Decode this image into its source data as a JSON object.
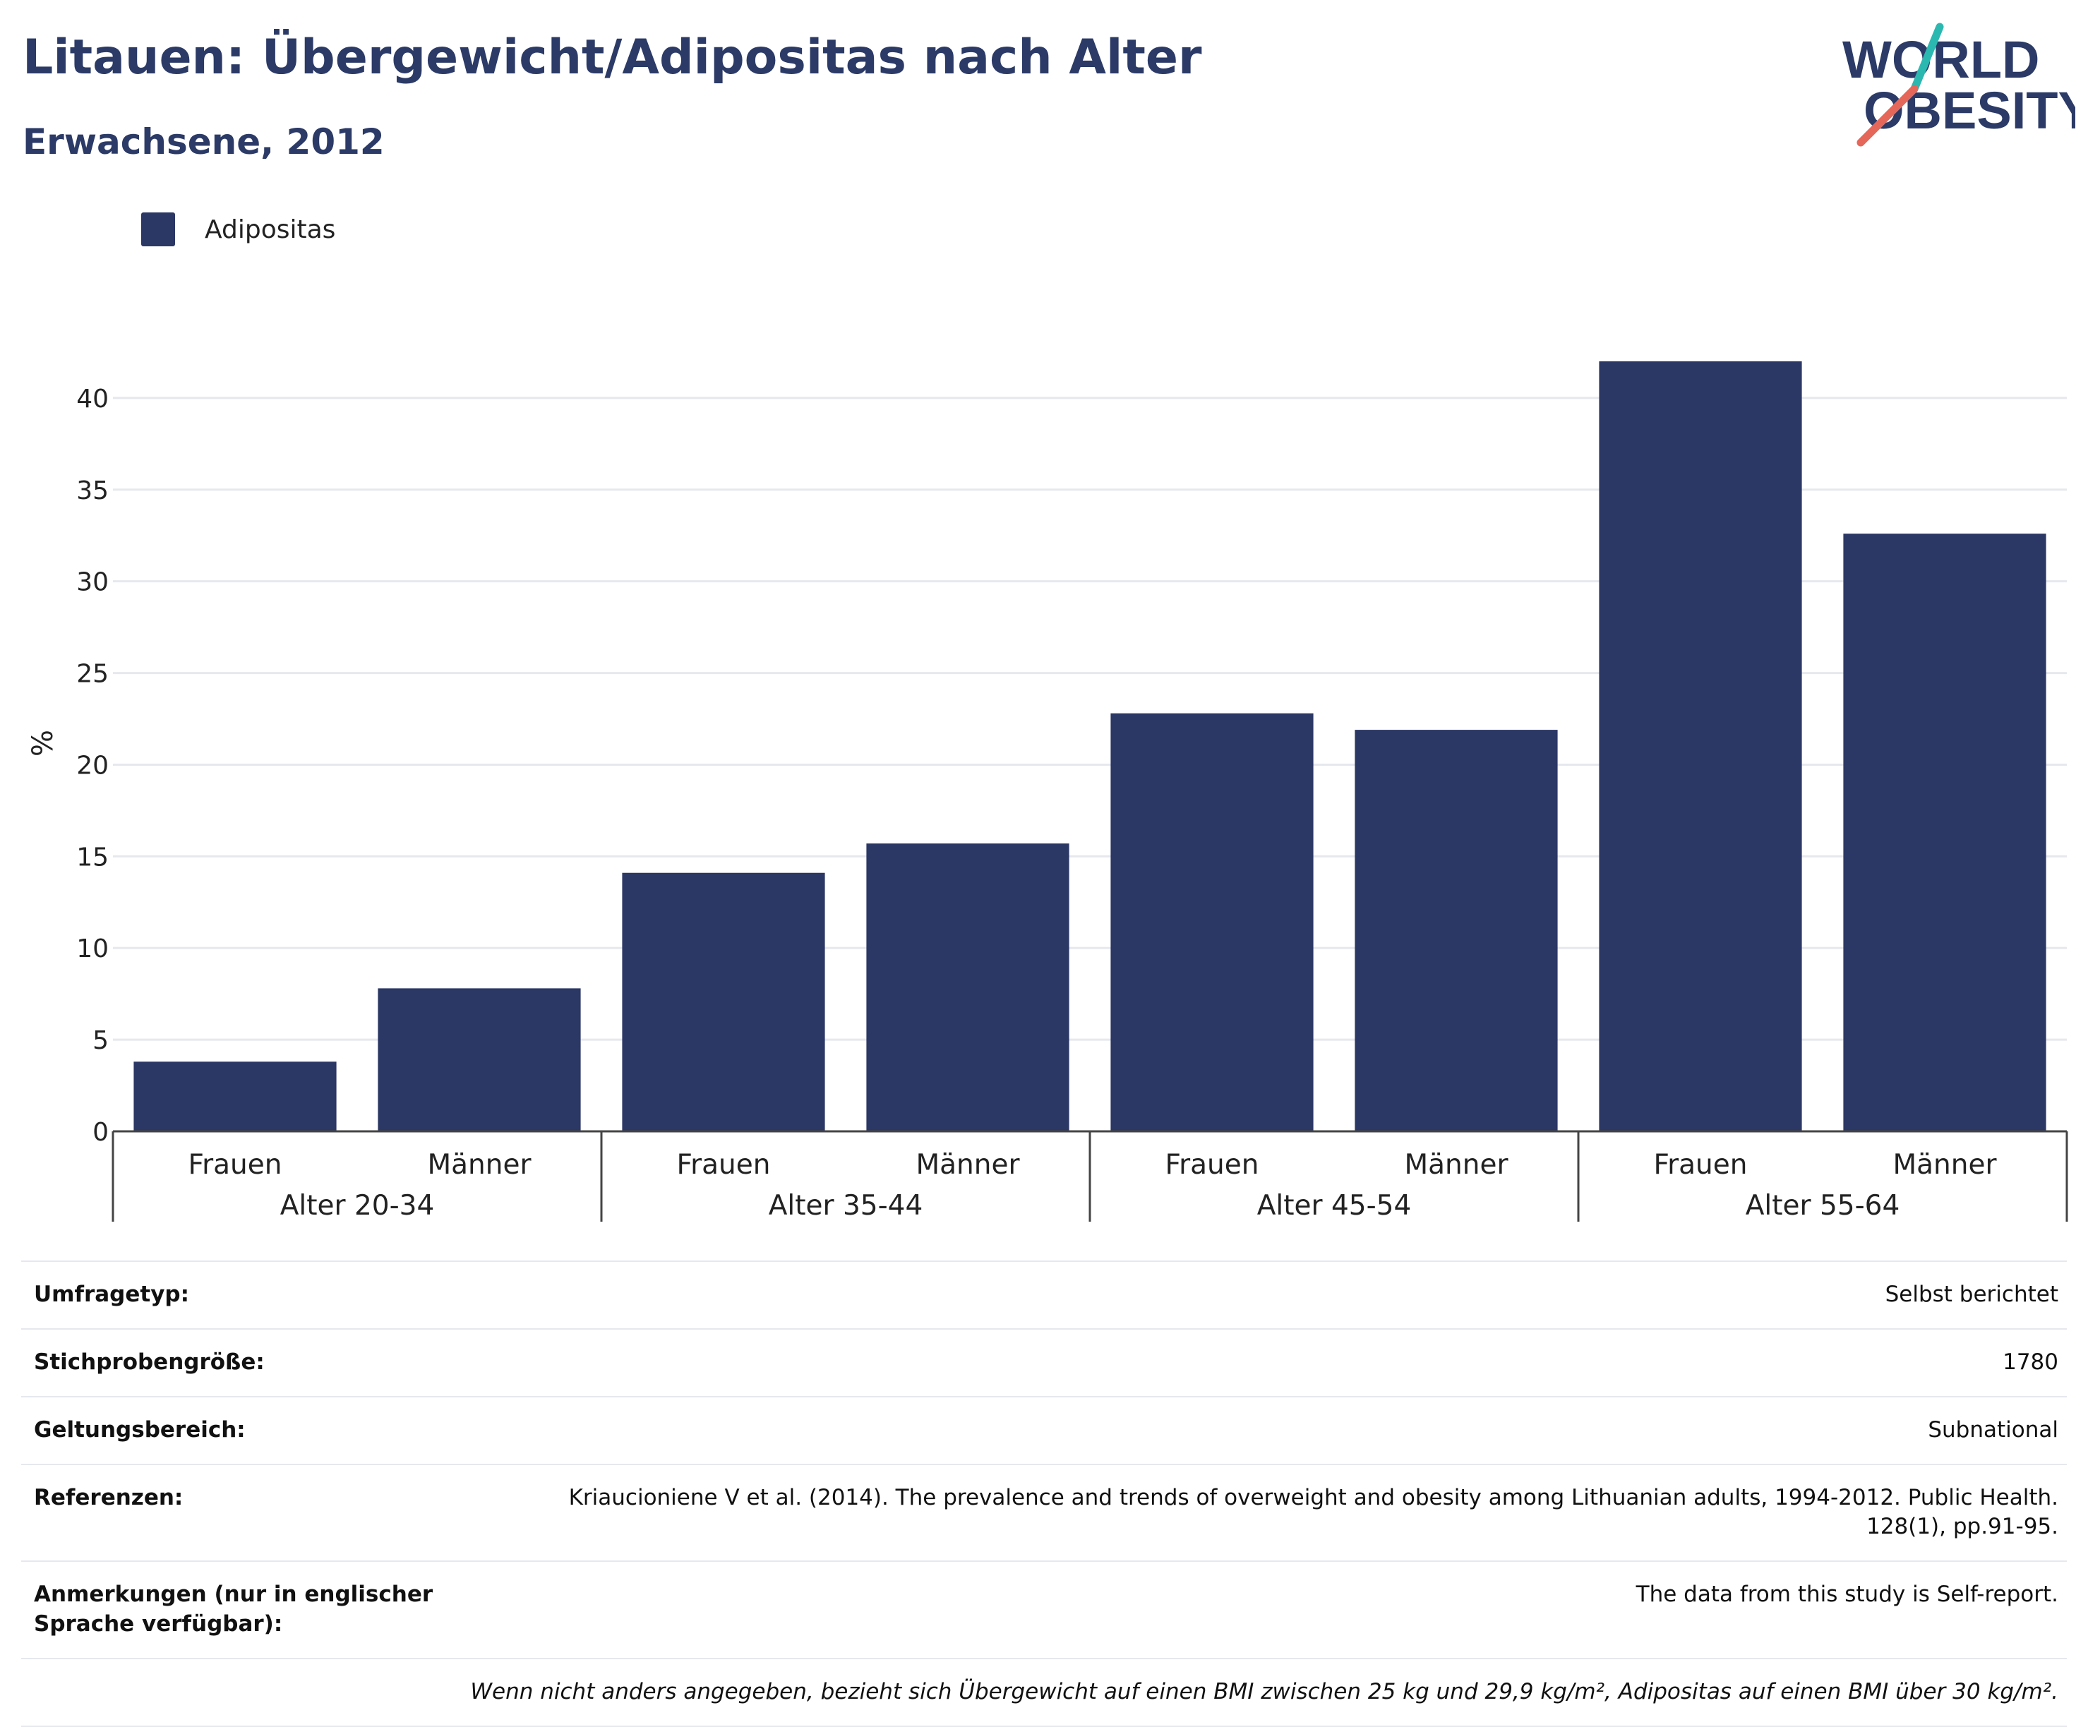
{
  "title": "Litauen: Übergewicht/Adipositas nach Alter",
  "subtitle": "Erwachsene, 2012",
  "logo": {
    "line1": "WORLD",
    "line2": "OBESITY",
    "accent_teal": "#2bb8b0",
    "accent_coral": "#e5675a",
    "text_color": "#2b3a66"
  },
  "colors": {
    "bar": "#2b3764",
    "title": "#2b3a66"
  },
  "chart_data": {
    "type": "bar",
    "title": "",
    "xlabel": "",
    "ylabel": "%",
    "ylim": [
      0,
      44
    ],
    "yticks": [
      0,
      5,
      10,
      15,
      20,
      25,
      30,
      35,
      40
    ],
    "grid": true,
    "legend_position": "top-left",
    "groups": [
      "Alter 20-34",
      "Alter 35-44",
      "Alter 45-54",
      "Alter 55-64"
    ],
    "categories": [
      "Frauen",
      "Männer",
      "Frauen",
      "Männer",
      "Frauen",
      "Männer",
      "Frauen",
      "Männer"
    ],
    "series": [
      {
        "name": "Adipositas",
        "color": "#2b3764",
        "values": [
          3.8,
          7.8,
          14.1,
          15.7,
          22.8,
          21.9,
          42.0,
          32.6
        ]
      }
    ]
  },
  "info_rows": [
    {
      "label": "Umfragetyp:",
      "value": "Selbst berichtet"
    },
    {
      "label": "Stichprobengröße:",
      "value": "1780"
    },
    {
      "label": "Geltungsbereich:",
      "value": "Subnational"
    },
    {
      "label": "Referenzen:",
      "value": "Kriaucioniene V et al. (2014). The prevalence and trends of overweight and obesity among Lithuanian adults, 1994-2012. Public Health. 128(1), pp.91-95."
    },
    {
      "label": "Anmerkungen (nur in englischer Sprache verfügbar):",
      "value": "The data from this study is Self-report."
    }
  ],
  "footnote": "Wenn nicht anders angegeben, bezieht sich Übergewicht auf einen BMI zwischen 25 kg und 29,9 kg/m², Adipositas auf einen BMI über 30 kg/m²."
}
